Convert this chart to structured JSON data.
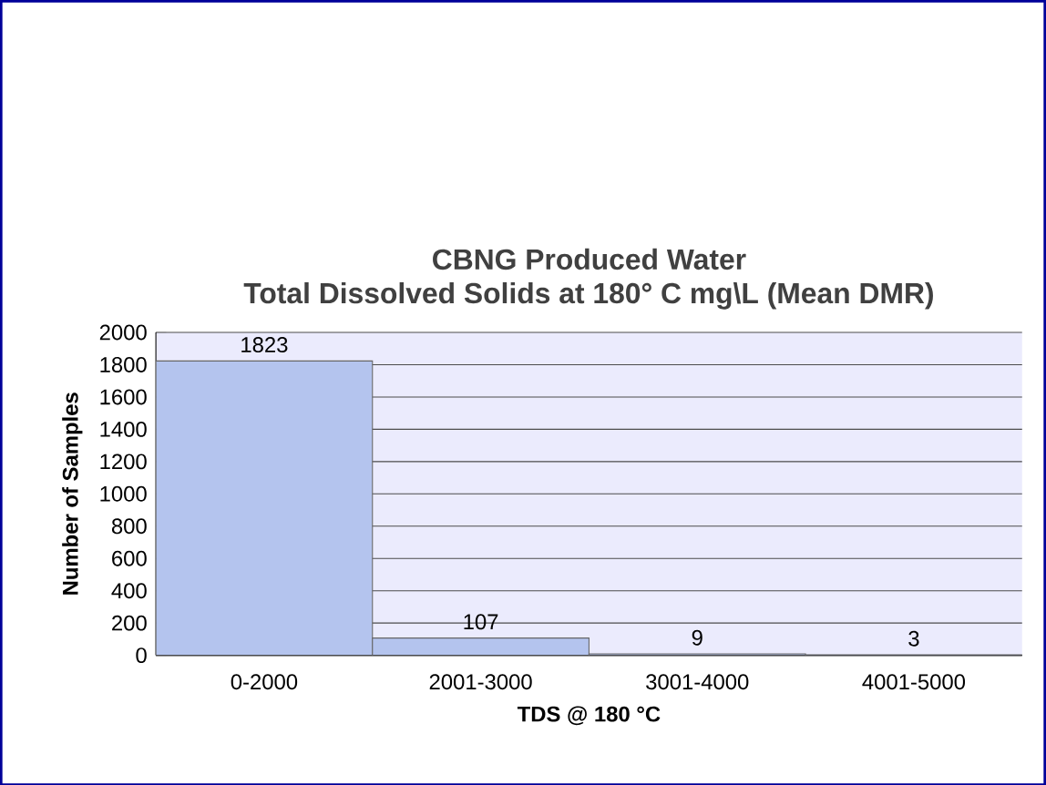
{
  "chart_data": {
    "type": "bar",
    "title": "CBNG Produced Water",
    "subtitle": "Total Dissolved Solids at 180° C mg\\L (Mean DMR)",
    "xlabel": "TDS @ 180 °C",
    "ylabel": "Number of Samples",
    "categories": [
      "0-2000",
      "2001-3000",
      "3001-4000",
      "4001-5000"
    ],
    "values": [
      1823,
      107,
      9,
      3
    ],
    "color": "#b4c4ee",
    "ylim": [
      0,
      2000
    ],
    "yticks": [
      0,
      200,
      400,
      600,
      800,
      1000,
      1200,
      1400,
      1600,
      1800,
      2000
    ],
    "grid": "y",
    "data_labels": true
  }
}
